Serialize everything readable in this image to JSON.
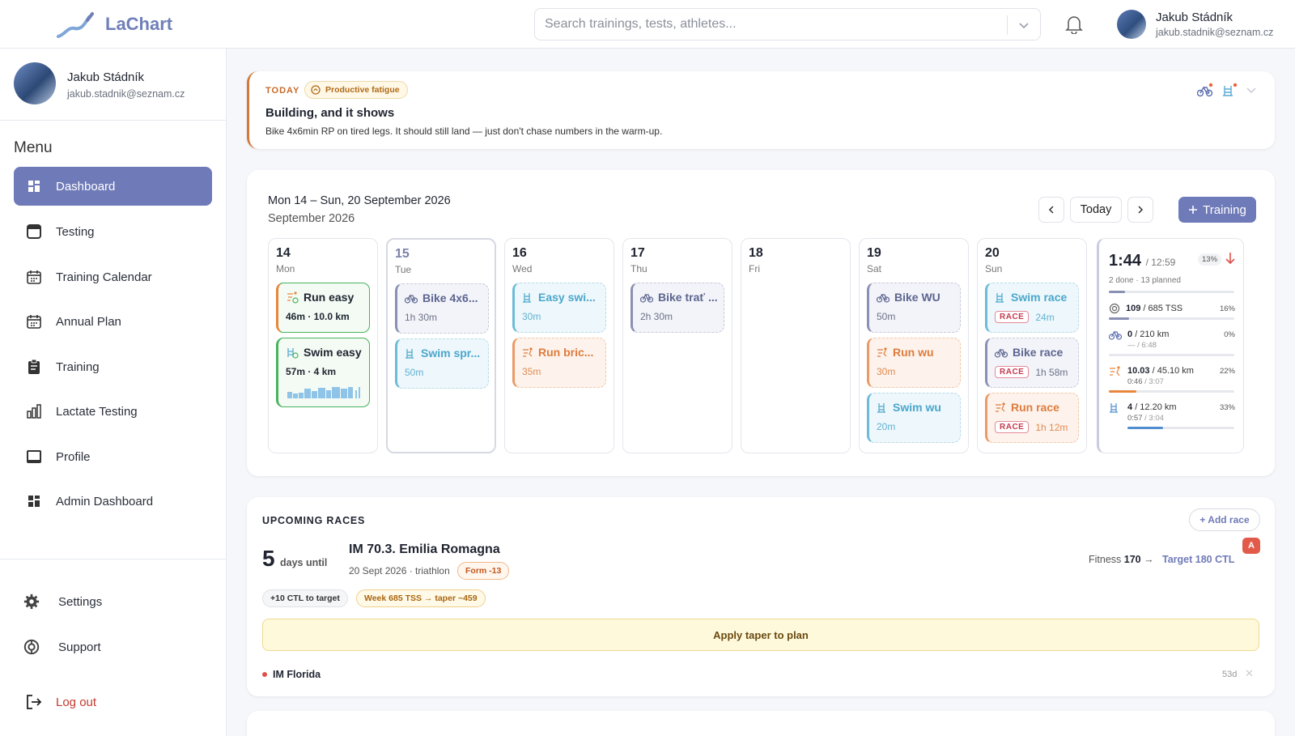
{
  "app": {
    "name": "LaChart"
  },
  "search": {
    "placeholder": "Search trainings, tests, athletes..."
  },
  "user": {
    "name": "Jakub Stádník",
    "email": "jakub.stadnik@seznam.cz"
  },
  "menu": {
    "title": "Menu",
    "items": [
      {
        "label": "Dashboard",
        "icon": "grid-icon",
        "active": true
      },
      {
        "label": "Testing",
        "icon": "square-icon"
      },
      {
        "label": "Training Calendar",
        "icon": "calendar-icon"
      },
      {
        "label": "Annual Plan",
        "icon": "calendar-icon"
      },
      {
        "label": "Training",
        "icon": "clipboard-icon"
      },
      {
        "label": "Lactate Testing",
        "icon": "bar-chart-icon"
      },
      {
        "label": "Profile",
        "icon": "profile-icon"
      },
      {
        "label": "Admin Dashboard",
        "icon": "grid-icon"
      }
    ],
    "settings": "Settings",
    "support": "Support",
    "logout": "Log out"
  },
  "today": {
    "label": "TODAY",
    "badge": "Productive fatigue",
    "title": "Building, and it shows",
    "description": "Bike 4x6min RP on tired legs. It should still land — just don't chase numbers in the warm-up."
  },
  "calendar": {
    "range": "Mon 14 – Sun, 20 September 2026",
    "month": "September 2026",
    "today_button": "Today",
    "add_button": "Training",
    "days": [
      {
        "num": "14",
        "name": "Mon",
        "events": [
          {
            "type": "run",
            "title": "Run easy",
            "sub": "46m · 10.0 km",
            "done": true
          },
          {
            "type": "swim",
            "title": "Swim easy",
            "sub": "57m · 4 km",
            "done": true
          }
        ]
      },
      {
        "num": "15",
        "name": "Tue",
        "current": true,
        "events": [
          {
            "type": "bike",
            "title": "Bike 4x6...",
            "sub": "1h 30m"
          },
          {
            "type": "swim",
            "title": "Swim spr...",
            "sub": "50m"
          }
        ]
      },
      {
        "num": "16",
        "name": "Wed",
        "events": [
          {
            "type": "swim",
            "title": "Easy swi...",
            "sub": "30m"
          },
          {
            "type": "run",
            "title": "Run bric...",
            "sub": "35m"
          }
        ]
      },
      {
        "num": "17",
        "name": "Thu",
        "events": [
          {
            "type": "bike",
            "title": "Bike trať ...",
            "sub": "2h 30m"
          }
        ]
      },
      {
        "num": "18",
        "name": "Fri",
        "events": []
      },
      {
        "num": "19",
        "name": "Sat",
        "events": [
          {
            "type": "bike",
            "title": "Bike WU",
            "sub": "50m"
          },
          {
            "type": "run",
            "title": "Run wu",
            "sub": "30m"
          },
          {
            "type": "swim",
            "title": "Swim wu",
            "sub": "20m"
          }
        ]
      },
      {
        "num": "20",
        "name": "Sun",
        "events": [
          {
            "type": "swim",
            "title": "Swim race",
            "sub": "24m",
            "race": "RACE"
          },
          {
            "type": "bike",
            "title": "Bike race",
            "sub": "1h 58m",
            "race": "RACE"
          },
          {
            "type": "run",
            "title": "Run race",
            "sub": "1h 12m",
            "race": "RACE"
          }
        ]
      }
    ],
    "summary": {
      "time_done": "1:44",
      "time_planned": "/ 12:59",
      "percent": "13%",
      "progress": 0.13,
      "done_planned": "2 done · 13 planned",
      "rows": [
        {
          "icon": "tss-icon",
          "value": "109",
          "total": "/ 685 TSS",
          "pct": "16%",
          "progress": 0.16,
          "color": "#8a90b3"
        },
        {
          "icon": "bike-icon",
          "value": "0",
          "total": "/ 210 km",
          "pct": "0%",
          "sub_done": "—",
          "sub_total": "/ 6:48",
          "progress": 0,
          "color": "#8a90b3"
        },
        {
          "icon": "run-icon",
          "value": "10.03",
          "total": "/ 45.10 km",
          "pct": "22%",
          "sub_done": "0:46",
          "sub_total": "/ 3:07",
          "progress": 0.22,
          "color": "#e8863b"
        },
        {
          "icon": "swim-icon",
          "value": "4",
          "total": "/ 12.20 km",
          "pct": "33%",
          "sub_done": "0:57",
          "sub_total": "/ 3:04",
          "progress": 0.33,
          "color": "#4f8fcf"
        }
      ]
    }
  },
  "races": {
    "title": "UPCOMING RACES",
    "add": "+ Add race",
    "next": {
      "days": "5",
      "days_label": "days until",
      "name": "IM 70.3. Emilia Romagna",
      "meta": "20 Sept 2026 · triathlon",
      "form": "Form -13",
      "fitness_label": "Fitness",
      "fitness_value": "170",
      "arrow": "→",
      "target": "Target 180 CTL",
      "priority": "A",
      "ctl_pill": "+10 CTL to target",
      "taper_pill": "Week 685 TSS → taper ~459",
      "apply": "Apply taper to plan"
    },
    "other": {
      "name": "IM Florida",
      "days": "53d"
    }
  },
  "colors": {
    "accent": "#6f7ab8",
    "bike": "#8a90b3",
    "swim": "#6dbbd8",
    "run": "#e8863b",
    "done": "#47b35c"
  }
}
